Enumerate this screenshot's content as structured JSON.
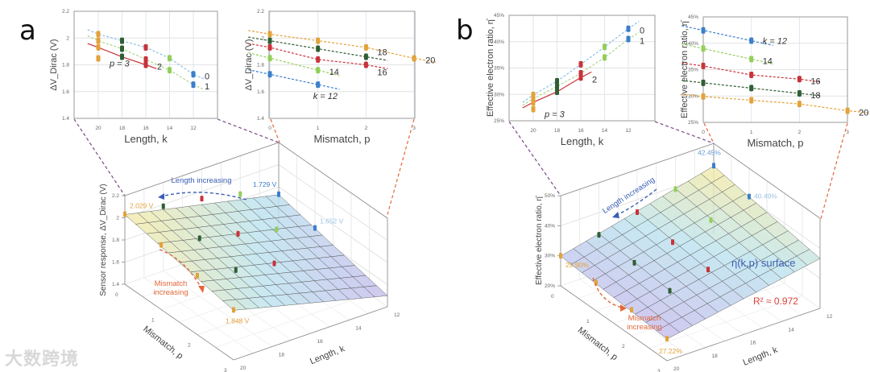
{
  "panels": {
    "a": "a",
    "b": "b"
  },
  "watermark": "大数跨境",
  "colors": {
    "k20": "#e3a23a",
    "k18": "#2f5e34",
    "k16": "#c9323a",
    "k14": "#93cf5a",
    "k12": "#3b7fcb",
    "arrow_blue": "#3b5fb5",
    "arrow_orange": "#e2683a",
    "r2": "#d9453c"
  },
  "chart_data": [
    {
      "type": "scatter",
      "id": "a-length",
      "title": "",
      "xlabel": "Length, k",
      "ylabel": "ΔV_Dirac (V)",
      "x_ticks": [
        "20",
        "18",
        "16",
        "14",
        "12"
      ],
      "y_ticks": [
        "1.4",
        "1.6",
        "1.8",
        "2",
        "2.2"
      ],
      "xlim": [
        21,
        11
      ],
      "ylim": [
        1.4,
        2.2
      ],
      "x": [
        20,
        18,
        16,
        14,
        12
      ],
      "series": [
        {
          "name": "0",
          "label": "0",
          "values": [
            2.029,
            1.98,
            1.93,
            1.85,
            1.729
          ]
        },
        {
          "name": "1",
          "label": "1",
          "values": [
            1.98,
            1.92,
            1.84,
            1.76,
            1.652
          ]
        },
        {
          "name": "2",
          "label": "2",
          "values": [
            1.93,
            1.86,
            1.8,
            null,
            null
          ]
        },
        {
          "name": "3",
          "label": "p = 3",
          "values": [
            1.848,
            null,
            null,
            null,
            null
          ]
        }
      ]
    },
    {
      "type": "scatter",
      "id": "a-mismatch",
      "xlabel": "Mismatch, p",
      "ylabel": "ΔV_Dirac (V)",
      "x_ticks": [
        "0",
        "1",
        "2",
        "3"
      ],
      "y_ticks": [
        "1.4",
        "1.6",
        "1.8",
        "2",
        "2.2"
      ],
      "xlim": [
        0,
        3
      ],
      "ylim": [
        1.4,
        2.2
      ],
      "x": [
        0,
        1,
        2,
        3
      ],
      "series": [
        {
          "name": "20",
          "label": "20",
          "values": [
            2.029,
            1.98,
            1.93,
            1.848
          ]
        },
        {
          "name": "18",
          "label": "18",
          "values": [
            1.98,
            1.92,
            1.86,
            null
          ]
        },
        {
          "name": "16",
          "label": "16",
          "values": [
            1.93,
            1.84,
            1.8,
            null
          ]
        },
        {
          "name": "14",
          "label": "14",
          "values": [
            1.85,
            1.76,
            null,
            null
          ]
        },
        {
          "name": "12",
          "label": "k = 12",
          "values": [
            1.729,
            1.652,
            null,
            null
          ]
        }
      ]
    },
    {
      "type": "scatter",
      "id": "b-length",
      "xlabel": "Length, k",
      "ylabel": "Effective electron ratio, η̄",
      "x_ticks": [
        "20",
        "18",
        "16",
        "14",
        "12"
      ],
      "y_ticks": [
        "25%",
        "30%",
        "35%",
        "40%",
        "45%"
      ],
      "xlim": [
        21,
        11
      ],
      "ylim": [
        25,
        45
      ],
      "x": [
        20,
        18,
        16,
        14,
        12
      ],
      "series": [
        {
          "name": "0",
          "label": "0",
          "values": [
            29.9,
            32.5,
            35.7,
            39.0,
            42.45
          ]
        },
        {
          "name": "1",
          "label": "1",
          "values": [
            29.2,
            31.5,
            34.0,
            37.0,
            40.49
          ]
        },
        {
          "name": "2",
          "label": "2",
          "values": [
            28.5,
            30.5,
            33.2,
            null,
            null
          ]
        },
        {
          "name": "3",
          "label": "p = 3",
          "values": [
            27.22,
            null,
            null,
            null,
            null
          ]
        }
      ]
    },
    {
      "type": "scatter",
      "id": "b-mismatch",
      "xlabel": "Mismatch, p",
      "ylabel": "Effective electron ratio, η̄",
      "x_ticks": [
        "0",
        "1",
        "2",
        "3"
      ],
      "y_ticks": [
        "25%",
        "30%",
        "35%",
        "40%",
        "45%"
      ],
      "xlim": [
        0,
        3
      ],
      "ylim": [
        25,
        45
      ],
      "x": [
        0,
        1,
        2,
        3
      ],
      "series": [
        {
          "name": "12",
          "label": "k = 12",
          "values": [
            42.45,
            40.49,
            null,
            null
          ]
        },
        {
          "name": "14",
          "label": "14",
          "values": [
            39.0,
            37.0,
            null,
            null
          ]
        },
        {
          "name": "16",
          "label": "16",
          "values": [
            35.7,
            34.0,
            33.2,
            null
          ]
        },
        {
          "name": "18",
          "label": "18",
          "values": [
            32.5,
            31.5,
            30.5,
            null
          ]
        },
        {
          "name": "20",
          "label": "20",
          "values": [
            29.9,
            29.2,
            28.5,
            27.22
          ]
        }
      ]
    },
    {
      "type": "surface",
      "id": "a-surface",
      "zlabel": "Sensor response, ΔV_Dirac (V)",
      "xlabel": "Length, k",
      "ylabel": "Mismatch, p",
      "z_ticks": [
        "1.4",
        "1.6",
        "1.8",
        "2",
        "2.2"
      ],
      "k_ticks": [
        "20",
        "18",
        "16",
        "14",
        "12"
      ],
      "p_ticks": [
        "0",
        "1",
        "2",
        "3"
      ],
      "zlim": [
        1.4,
        2.2
      ],
      "corner_values": {
        "k20_p0": 2.029,
        "k12_p0": 1.729,
        "k20_p3": 1.848,
        "k12_p3": 1.5
      },
      "annotations": [
        "2.029 V",
        "1.729 V",
        "1.652 V",
        "1.848 V"
      ],
      "arrow_length": "Length increasing",
      "arrow_mismatch": "Mismatch increasing"
    },
    {
      "type": "surface",
      "id": "b-surface",
      "zlabel": "Effective electron ratio, η̄",
      "xlabel": "Length, k",
      "ylabel": "Mismatch, p",
      "z_ticks": [
        "20%",
        "30%",
        "40%",
        "50%"
      ],
      "k_ticks": [
        "20",
        "18",
        "16",
        "14",
        "12"
      ],
      "p_ticks": [
        "0",
        "1",
        "2",
        "3"
      ],
      "zlim": [
        20,
        50
      ],
      "corner_values": {
        "k20_p0": 29.9,
        "k12_p0": 42.45,
        "k20_p3": 27.22,
        "k12_p3": 36.6
      },
      "annotations": [
        "42.45%",
        "40.49%",
        "29.90%",
        "27.22%"
      ],
      "arrow_length": "Length increasing",
      "arrow_mismatch": "Mismatch increasing",
      "surface_label": "η(k,p) surface",
      "fit_label": "R² ≈ 0.972"
    }
  ]
}
